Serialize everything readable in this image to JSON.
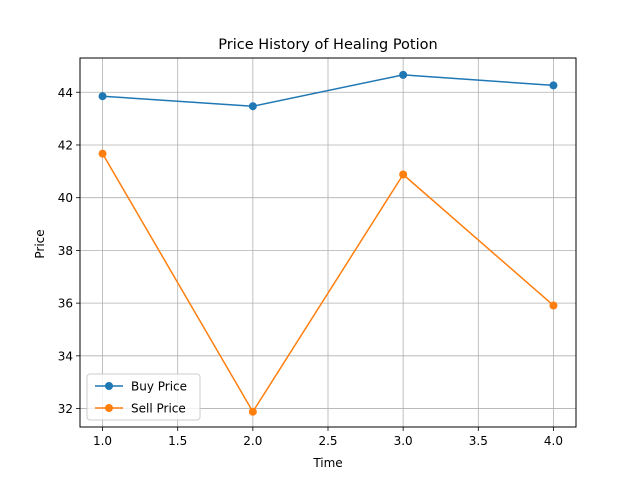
{
  "chart_data": {
    "type": "line",
    "title": "Price History of Healing Potion",
    "xlabel": "Time",
    "ylabel": "Price",
    "x": [
      1.0,
      2.0,
      3.0,
      4.0
    ],
    "xlim": [
      0.85,
      4.15
    ],
    "ylim": [
      31.3,
      45.3
    ],
    "xticks": [
      1.0,
      1.5,
      2.0,
      2.5,
      3.0,
      3.5,
      4.0
    ],
    "xtick_labels": [
      "1.0",
      "1.5",
      "2.0",
      "2.5",
      "3.0",
      "3.5",
      "4.0"
    ],
    "yticks": [
      32,
      34,
      36,
      38,
      40,
      42,
      44
    ],
    "ytick_labels": [
      "32",
      "34",
      "36",
      "38",
      "40",
      "42",
      "44"
    ],
    "grid": true,
    "legend_position": "lower-left",
    "series": [
      {
        "name": "Buy Price",
        "color": "#1f77b4",
        "marker": "circle",
        "values": [
          43.85,
          43.47,
          44.66,
          44.26
        ]
      },
      {
        "name": "Sell Price",
        "color": "#ff7f0e",
        "marker": "circle",
        "values": [
          41.67,
          31.88,
          40.88,
          35.91
        ]
      }
    ]
  }
}
